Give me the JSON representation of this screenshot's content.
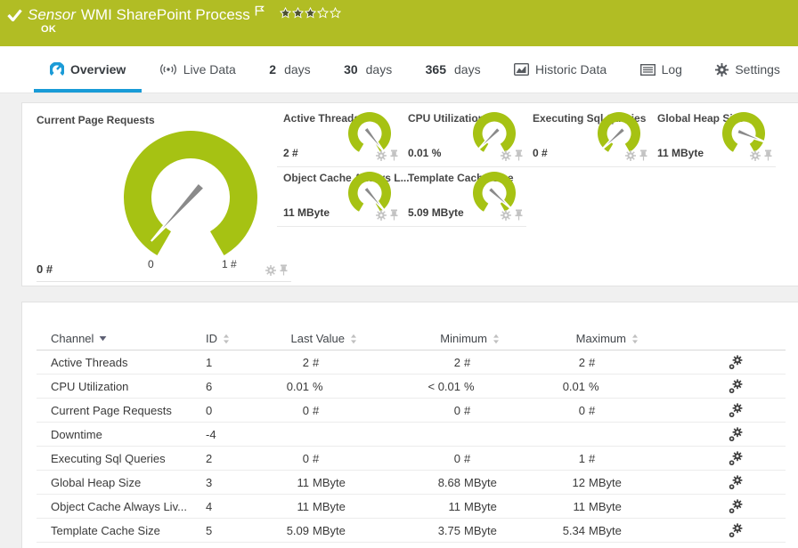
{
  "header": {
    "title_prefix": "Sensor",
    "title": "WMI SharePoint Process",
    "status": "OK",
    "priority": {
      "filled": 3,
      "total": 5
    }
  },
  "tabs": [
    {
      "label": "Overview",
      "icon": "gauge-icon",
      "active": true
    },
    {
      "label": "Live Data",
      "icon": "live-icon",
      "active": false
    },
    {
      "strong": "2",
      "label": "days",
      "active": false
    },
    {
      "strong": "30",
      "label": "days",
      "active": false
    },
    {
      "strong": "365",
      "label": "days",
      "active": false
    },
    {
      "label": "Historic Data",
      "icon": "histdata-icon",
      "active": false
    },
    {
      "label": "Log",
      "icon": "log-icon",
      "active": false
    },
    {
      "label": "Settings",
      "icon": "gear-icon",
      "active": false
    }
  ],
  "gauges": {
    "primary": {
      "title": "Current Page Requests",
      "value": "0 #",
      "scale_min": "0",
      "scale_max": "1 #",
      "needle_deg": 222
    },
    "small": [
      {
        "title": "Active Threads",
        "value": "2 #",
        "needle_deg": 142
      },
      {
        "title": "CPU Utilization",
        "value": "0.01 %",
        "needle_deg": 225
      },
      {
        "title": "Executing Sql Queries",
        "value": "0 #",
        "needle_deg": 227
      },
      {
        "title": "Global Heap Size",
        "value": "11 MByte",
        "needle_deg": 112
      },
      {
        "title": "Object Cache Always L...",
        "value": "11 MByte",
        "needle_deg": 140
      },
      {
        "title": "Template Cache Size",
        "value": "5.09 MByte",
        "needle_deg": 133
      }
    ]
  },
  "table": {
    "columns": [
      {
        "label": "Channel",
        "sort": "desc"
      },
      {
        "label": "ID",
        "sort": "both"
      },
      {
        "label": "Last Value",
        "sort": "both"
      },
      {
        "label": "Minimum",
        "sort": "both"
      },
      {
        "label": "Maximum",
        "sort": "both"
      }
    ],
    "rows": [
      {
        "channel": "Active Threads",
        "id": "1",
        "last": "2 #",
        "min": "2 #",
        "max": "2 #"
      },
      {
        "channel": "CPU Utilization",
        "id": "6",
        "last": "0.01 %",
        "min": "< 0.01 %",
        "max": "0.01 %"
      },
      {
        "channel": "Current Page Requests",
        "id": "0",
        "last": "0 #",
        "min": "0 #",
        "max": "0 #"
      },
      {
        "channel": "Downtime",
        "id": "-4",
        "last": "",
        "min": "",
        "max": ""
      },
      {
        "channel": "Executing Sql Queries",
        "id": "2",
        "last": "0 #",
        "min": "0 #",
        "max": "1 #"
      },
      {
        "channel": "Global Heap Size",
        "id": "3",
        "last": "11 MByte",
        "min": "8.68 MByte",
        "max": "12 MByte"
      },
      {
        "channel": "Object Cache Always Liv...",
        "id": "4",
        "last": "11 MByte",
        "min": "11 MByte",
        "max": "11 MByte"
      },
      {
        "channel": "Template Cache Size",
        "id": "5",
        "last": "5.09 MByte",
        "min": "3.75 MByte",
        "max": "5.34 MByte"
      }
    ]
  },
  "colors": {
    "banner_green": "#b1bd24",
    "gauge_green": "#a6c213",
    "accent_blue": "#189bd7",
    "needle_gray": "#8a8a8a",
    "icon_gray": "#c3c3c3"
  }
}
